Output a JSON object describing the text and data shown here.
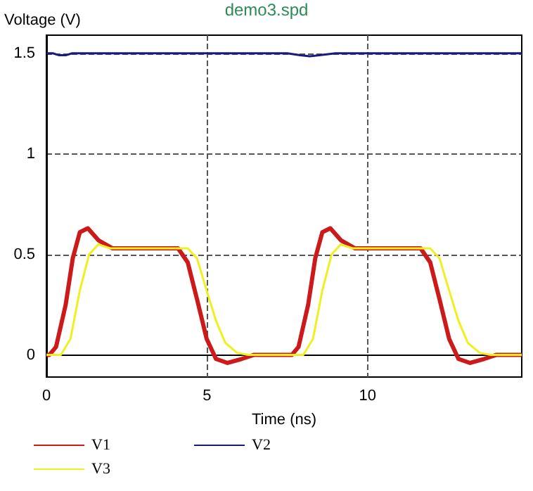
{
  "chart_data": {
    "type": "line",
    "title": "demo3.spd",
    "xlabel": "Time (ns)",
    "ylabel": "Voltage (V)",
    "xlim": [
      0,
      14.8
    ],
    "xticks": [
      0,
      5,
      10
    ],
    "ylim": [
      -0.11,
      1.59
    ],
    "yticks": [
      0,
      0.5,
      1,
      1.5
    ],
    "grid": true,
    "legend": "bottom",
    "marker": "none",
    "line_style": "solid",
    "series": [
      {
        "name": "V1",
        "color": "#cc1a1a",
        "x": [
          0,
          0.09,
          0.3,
          0.6,
          0.82,
          1.04,
          1.29,
          1.62,
          2.06,
          3,
          4.1,
          4.4,
          4.7,
          4.99,
          5.28,
          5.64,
          6.08,
          6.45,
          7.64,
          7.85,
          8.15,
          8.37,
          8.59,
          8.84,
          9.17,
          9.61,
          10.5,
          11.65,
          11.95,
          12.25,
          12.54,
          12.83,
          13.19,
          13.63,
          14,
          14.8
        ],
        "values": [
          0,
          0,
          0.04,
          0.25,
          0.48,
          0.61,
          0.63,
          0.57,
          0.53,
          0.53,
          0.53,
          0.46,
          0.27,
          0.08,
          -0.02,
          -0.04,
          -0.02,
          0,
          0,
          0.04,
          0.25,
          0.48,
          0.61,
          0.63,
          0.57,
          0.53,
          0.53,
          0.53,
          0.46,
          0.27,
          0.08,
          -0.02,
          -0.04,
          -0.02,
          0,
          0
        ]
      },
      {
        "name": "V2",
        "color": "#1a1a80",
        "x": [
          0,
          0.2,
          0.4,
          0.6,
          0.8,
          2,
          4,
          5.5,
          7.5,
          7.9,
          8.2,
          8.5,
          9,
          10,
          11.5,
          13,
          14.8
        ],
        "values": [
          1.5,
          1.5,
          1.49,
          1.49,
          1.5,
          1.5,
          1.5,
          1.5,
          1.5,
          1.49,
          1.485,
          1.49,
          1.5,
          1.5,
          1.5,
          1.5,
          1.5
        ]
      },
      {
        "name": "V3",
        "color": "#f0f020",
        "x": [
          0,
          0.45,
          0.75,
          1.04,
          1.33,
          1.62,
          1.98,
          3,
          4.4,
          4.69,
          4.99,
          5.28,
          5.57,
          5.94,
          6.3,
          8,
          8.3,
          8.59,
          8.88,
          9.17,
          9.53,
          10.5,
          11.95,
          12.24,
          12.54,
          12.83,
          13.12,
          13.49,
          13.85,
          14.8
        ],
        "values": [
          0,
          0,
          0.08,
          0.32,
          0.5,
          0.55,
          0.53,
          0.53,
          0.53,
          0.48,
          0.32,
          0.17,
          0.06,
          0.01,
          0,
          0,
          0.08,
          0.32,
          0.5,
          0.55,
          0.53,
          0.53,
          0.53,
          0.48,
          0.32,
          0.17,
          0.06,
          0.01,
          0,
          0
        ]
      }
    ]
  }
}
